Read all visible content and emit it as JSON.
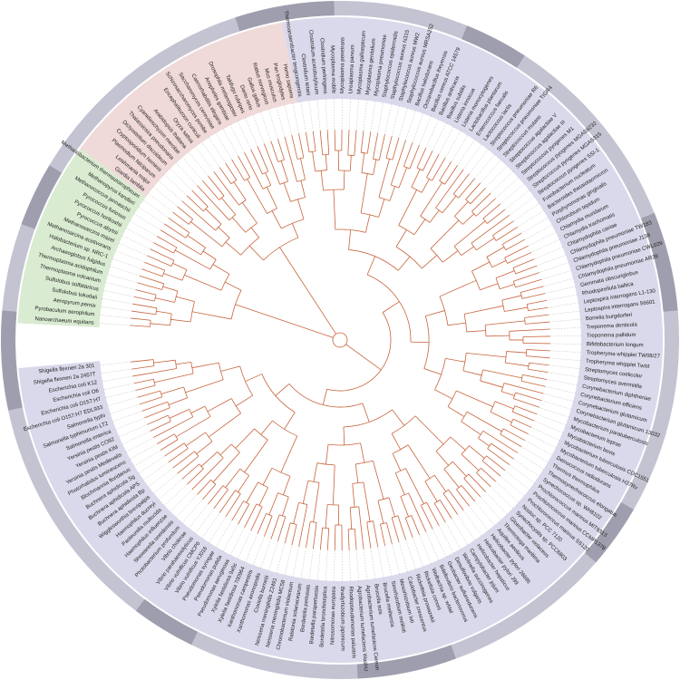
{
  "clades": [
    {
      "color": "#d9ebd1",
      "leaves": [
        "Nanoarchaeum equitans",
        "Pyrobaculum aerophilum",
        "Aeropyrum pernix",
        "Sulfolobus tokodaii",
        "Sulfolobus solfataricus",
        "Thermoplasma volcanium",
        "Thermoplasma acidophilum",
        "Archaeoglobus fulgidus",
        "Halobacterium sp. NRC-1",
        "Methanosarcina acetivorans",
        "Methanosarcina mazei",
        "Pyrococcus abyssi",
        "Pyrococcus horikoshii",
        "Pyrococcus furiosus",
        "Methanococcus jannaschii",
        "Methanopyrus kandleri",
        "Methanobacterium thermautotrophicum"
      ]
    },
    {
      "color": "#f0d9d9",
      "leaves": [
        "Giardia lamblia",
        "Leishmania major",
        "Plasmodium falciparum",
        "Cryptosporidium hominis",
        "Dictyostelium discoideum",
        "Thalassiosira pseudonana",
        "Cyanidioschyzon merolae",
        "Arabidopsis thaliana",
        "Oryza sativa",
        "Encephalitozoon cuniculi",
        "Schizosaccharomyces pombe",
        "Saccharomyces cerevisiae",
        "Caenorhabditis elegans",
        "Anopheles gambiae",
        "Drosophila melanogaster",
        "Takifugu rubripes",
        "Danio rerio",
        "Gallus gallus",
        "Rattus norvegicus",
        "Mus musculus",
        "Pan troglodytes",
        "Homo sapiens"
      ]
    },
    {
      "color": "#d9d9eb",
      "leaves": [
        "Thermoanaerobacter tengcongensis",
        "Clostridium tetani",
        "Clostridium acetobutylicum",
        "Clostridium perfringens",
        "Mycoplasma mobile",
        "Mycoplasma penetrans",
        "Ureaplasma parvum",
        "Mycoplasma gallisepticum",
        "Mycoplasma genitalium",
        "Mycoplasma pneumoniae",
        "Staphylococcus epidermidis",
        "Staphylococcus aureus N315",
        "Staphylococcus aureus MW2",
        "Staphylococcus aureus MRSA252",
        "Bacillus halodurans",
        "Oceanobacillus iheyensis",
        "Bacillus cereus ATCC 14579",
        "Bacillus anthracis",
        "Bacillus subtilis",
        "Listeria innocua",
        "Listeria monocytogenes",
        "Lactobacillus plantarum",
        "Enterococcus faecalis",
        "Lactococcus lactis",
        "Streptococcus pneumoniae R6",
        "Streptococcus pneumoniae TIGR4",
        "Streptococcus mutans",
        "Streptococcus agalactiae V",
        "Streptococcus agalactiae III",
        "Streptococcus pyogenes M1",
        "Streptococcus pyogenes MGAS8232",
        "Streptococcus pyogenes MGAS315",
        "Streptococcus pyogenes SSI-1",
        "Fusobacterium nucleatum",
        "Bacteroides thetaiotaomicron",
        "Porphyromonas gingivalis",
        "Chlorobium tepidum",
        "Chlamydia muridarum",
        "Chlamydia trachomatis",
        "Chlamydophila caviae",
        "Chlamydophila pneumoniae TW183",
        "Chlamydophila pneumoniae J138",
        "Chlamydophila pneumoniae CWL029",
        "Chlamydophila pneumoniae AR39",
        "Gemmata obscuriglobus",
        "Rhodopirellula baltica",
        "Leptospira interrogans L1-130",
        "Leptospira interrogans 56601",
        "Borrelia burgdorferi",
        "Treponema denticola",
        "Treponema pallidum",
        "Bifidobacterium longum",
        "Tropheryma whipplei TW08/27",
        "Tropheryma whipplei Twist",
        "Streptomyces coelicolor",
        "Streptomyces avermitilis",
        "Corynebacterium diphtheriae",
        "Corynebacterium efficiens",
        "Corynebacterium glutamicum",
        "Corynebacterium glutamicum 13032",
        "Mycobacterium paratuberculosis",
        "Mycobacterium leprae",
        "Mycobacterium bovis",
        "Mycobacterium tuberculosis CDC1551",
        "Mycobacterium tuberculosis H37Rv",
        "Deinococcus radiodurans",
        "Thermus thermophilus",
        "Thermosynechococcus elongatus",
        "Synechococcus sp. WH8102",
        "Prochlorococcus marinus MIT9313",
        "Prochlorococcus marinus CCMP1378",
        "Prochlorococcus marinus SS120",
        "Nostoc sp. PCC 7120",
        "Synechocystis sp. PCC6803",
        "Gloeobacter violaceus",
        "Thermotoga maritima",
        "Aquifex aeolicus",
        "Helicobacter pylori 26695",
        "Helicobacter pylori J99",
        "Helicobacter hepaticus",
        "Campylobacter jejuni",
        "Wolinella succinogenes",
        "Desulfovibrio vulgaris",
        "Geobacter sulfurreducens",
        "Bdellovibrio bacteriovorus",
        "Wolbachia sp. wMel",
        "Rickettsia conorii",
        "Rickettsia prowazekii",
        "Caulobacter crescentus",
        "Mesorhizobium loti",
        "Sinorhizobium meliloti",
        "Brucella melitensis",
        "Brucella suis",
        "Agrobacterium tumefaciens Cereon",
        "Agrobacterium tumefaciens WashU",
        "Rhodopseudomonas palustris",
        "Bradyrhizobium japonicum",
        "Nitrosomonas europaea",
        "Bordetella bronchiseptica",
        "Bordetella parapertussis",
        "Bordetella pertussis",
        "Ralstonia solanacearum",
        "Chromobacterium violaceum",
        "Neisseria meningitidis MC58",
        "Neisseria meningitidis Z2491",
        "Coxiella burnetii",
        "Xanthomonas axonopodis",
        "Xanthomonas campestris",
        "Xylella fastidiosa 700964",
        "Xylella fastidiosa 9a5c",
        "Pseudomonas aeruginosa",
        "Pseudomonas putida",
        "Pseudomonas syringae",
        "Vibrio vulnificus YJ016",
        "Vibrio vulnificus CMCP6",
        "Vibrio parahaemolyticus",
        "Vibrio cholerae",
        "Photobacterium profundum",
        "Shewanella oneidensis",
        "Haemophilus influenzae",
        "Pasteurella multocida",
        "Haemophilus ducreyi",
        "Wigglesworthia brevipalpis",
        "Buchnera aphidicola Bp",
        "Buchnera aphidicola APS",
        "Buchnera aphidicola Sg",
        "Blochmannia floridanus",
        "Photorhabdus luminescens",
        "Yersinia pestis Medievalis",
        "Yersinia pestis KIM",
        "Yersinia pestis CO92",
        "Salmonella enterica",
        "Salmonella typhimurium LT2",
        "Salmonella typhi",
        "Escherichia coli O157:H7 EDL933",
        "Escherichia coli O157:H7",
        "Escherichia coli O6",
        "Escherichia coli K12",
        "Shigella flexneri 2a 2457T",
        "Shigella flexneri 2a 301"
      ]
    }
  ],
  "branch_color": "#c8643c"
}
